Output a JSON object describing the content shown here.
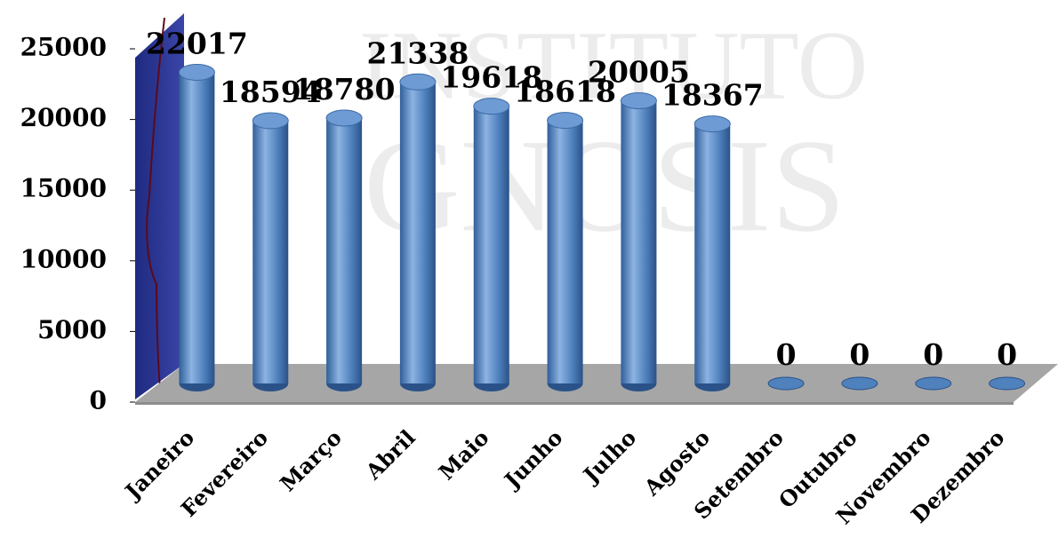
{
  "watermark": [
    "INSTITUTO",
    "GNOSIS"
  ],
  "chart_data": {
    "type": "bar",
    "categories": [
      "Janeiro",
      "Fevereiro",
      "Março",
      "Abril",
      "Maio",
      "Junho",
      "Julho",
      "Agosto",
      "Setembro",
      "Outubro",
      "Novembro",
      "Dezembro"
    ],
    "values": [
      22017,
      18594,
      18780,
      21338,
      19618,
      18618,
      20005,
      18367,
      0,
      0,
      0,
      0
    ],
    "color": "#4f81bd",
    "ylim": [
      0,
      25000
    ],
    "yticks": [
      0,
      5000,
      10000,
      15000,
      20000,
      25000
    ]
  }
}
